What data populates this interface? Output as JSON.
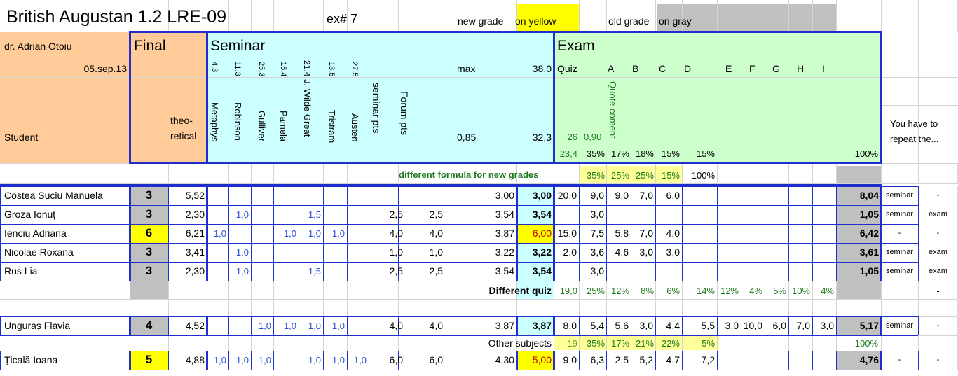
{
  "title": "British Augustan 1.2 LRE-09",
  "ex_label": "ex# 7",
  "legend": {
    "new_grade_a": "new grade",
    "new_grade_b": "on yellow",
    "old_grade_a": "old grade",
    "old_grade_b": "on gray"
  },
  "teacher": "dr. Adrian Otoiu",
  "date": "05.sep.13",
  "student_label": "Student",
  "final_label": "Final",
  "theoretical_a": "theo-",
  "theoretical_b": "retical",
  "seminar_label": "Seminar",
  "exam_label": "Exam",
  "seminar_nums": [
    "4.3",
    "11.3",
    "25.3",
    "15.4",
    "21.4",
    "13.5",
    "27.5"
  ],
  "seminar_cols": [
    "Metaphys",
    "Robinson",
    "Gulliver",
    "Pamela",
    "J. Wilde Great",
    "Tristram",
    "Austen",
    "seminar pts",
    "Forum pts"
  ],
  "max_label": "max",
  "max_value": "38,0",
  "ratio_value": "0,85",
  "ratio_total": "32,3",
  "exam_header": {
    "quiz": "Quiz",
    "letters": [
      "A",
      "B",
      "C",
      "D",
      "E",
      "F",
      "G",
      "H",
      "I"
    ],
    "quote": "Quote coment"
  },
  "exam_row1": {
    "v26": "26",
    "v090": "0,90"
  },
  "exam_row2": {
    "v234": "23,4",
    "p35": "35%",
    "p17": "17%",
    "p18": "18%",
    "p15a": "15%",
    "p15b": "15%",
    "p100": "100%"
  },
  "repeat_note": "You have to repeat the...",
  "diff_formula": {
    "label": "different formula for new grades",
    "p35": "35%",
    "p25a": "25%",
    "p25b": "25%",
    "p15": "15%",
    "p100": "100%"
  },
  "students": [
    {
      "name": "Costea Suciu Manuela",
      "final": "3",
      "final_color": "#c0c0c0",
      "theoretical": "5,52",
      "s1": "",
      "s2": "",
      "s3": "",
      "s4": "",
      "s5": "",
      "s6": "",
      "s7": "",
      "seminar_pts": "",
      "forum_pts": "",
      "total": "3,00",
      "sem_grade": "3,00",
      "sem_color": "#ccffff",
      "quiz": "20,0",
      "e1": "9,0",
      "e2": "9,0",
      "e3": "7,0",
      "e4": "6,0",
      "exam_final": "8,04",
      "rep_a": "seminar",
      "rep_b": "-"
    },
    {
      "name": "Groza Ionuț",
      "final": "3",
      "final_color": "#c0c0c0",
      "theoretical": "2,30",
      "s1": "",
      "s2": "1,0",
      "s3": "",
      "s4": "",
      "s5": "1,5",
      "s6": "",
      "s7": "",
      "seminar_pts": "2,5",
      "forum_pts": "2,5",
      "total": "3,54",
      "sem_grade": "3,54",
      "sem_color": "#ccffff",
      "quiz": "",
      "e1": "3,0",
      "e2": "",
      "e3": "",
      "e4": "",
      "exam_final": "1,05",
      "rep_a": "seminar",
      "rep_b": "exam"
    },
    {
      "name": "Ienciu Adriana",
      "final": "6",
      "final_color": "#ffff00",
      "theoretical": "6,21",
      "s1": "1,0",
      "s2": "",
      "s3": "",
      "s4": "1,0",
      "s5": "1,0",
      "s6": "1,0",
      "s7": "",
      "seminar_pts": "4,0",
      "forum_pts": "4,0",
      "total": "3,87",
      "sem_grade": "6,00",
      "sem_color": "#ffff00",
      "quiz": "15,0",
      "e1": "7,5",
      "e2": "5,8",
      "e3": "7,0",
      "e4": "4,0",
      "exam_final": "6,42",
      "rep_a": "-",
      "rep_b": "-"
    },
    {
      "name": "Nicolae Roxana",
      "final": "3",
      "final_color": "#c0c0c0",
      "theoretical": "3,41",
      "s1": "",
      "s2": "1,0",
      "s3": "",
      "s4": "",
      "s5": "",
      "s6": "",
      "s7": "",
      "seminar_pts": "1,0",
      "forum_pts": "1,0",
      "total": "3,22",
      "sem_grade": "3,22",
      "sem_color": "#ccffff",
      "quiz": "2,0",
      "e1": "3,6",
      "e2": "4,6",
      "e3": "3,0",
      "e4": "3,0",
      "exam_final": "3,61",
      "rep_a": "seminar",
      "rep_b": "exam"
    },
    {
      "name": "Rus Lia",
      "final": "3",
      "final_color": "#c0c0c0",
      "theoretical": "2,30",
      "s1": "",
      "s2": "1,0",
      "s3": "",
      "s4": "",
      "s5": "1,5",
      "s6": "",
      "s7": "",
      "seminar_pts": "2,5",
      "forum_pts": "2,5",
      "total": "3,54",
      "sem_grade": "3,54",
      "sem_color": "#ccffff",
      "quiz": "",
      "e1": "3,0",
      "e2": "",
      "e3": "",
      "e4": "",
      "exam_final": "1,05",
      "rep_a": "seminar",
      "rep_b": "exam"
    }
  ],
  "diff_quiz": {
    "label": "Different  quiz",
    "v190": "19,0",
    "p25": "25%",
    "p12a": "12%",
    "p8": "8%",
    "p6": "6%",
    "p14": "14%",
    "p12b": "12%",
    "p4a": "4%",
    "p5": "5%",
    "p10": "10%",
    "p4b": "4%",
    "dash": "-"
  },
  "flavia": {
    "name": "Unguraș Flavia",
    "final": "4",
    "theoretical": "4,52",
    "s3": "1,0",
    "s4": "1,0",
    "s5": "1,0",
    "s6": "1,0",
    "seminar_pts": "4,0",
    "forum_pts": "4,0",
    "total": "3,87",
    "sem_grade": "3,87",
    "quiz": "8,0",
    "e1": "5,4",
    "e2": "5,6",
    "e3": "3,0",
    "e4": "4,4",
    "e5": "5,5",
    "e6": "3,0",
    "e7": "10,0",
    "e8": "6,0",
    "e9": "7,0",
    "e10": "3,0",
    "exam_final": "5,17",
    "rep_a": "seminar",
    "rep_b": "-"
  },
  "other_subjects": {
    "label": "Other subjects",
    "v19": "19",
    "p35": "35%",
    "p17": "17%",
    "p21": "21%",
    "p22": "22%",
    "p5": "5%",
    "p100": "100%"
  },
  "ticala": {
    "name": "Țicală Ioana",
    "final": "5",
    "theoretical": "4,88",
    "s1": "1,0",
    "s2": "1,0",
    "s3": "1,0",
    "s5": "1,0",
    "s6": "1,0",
    "s7": "1,0",
    "seminar_pts": "6,0",
    "forum_pts": "6,0",
    "total": "4,30",
    "sem_grade": "5,00",
    "quiz": "9,0",
    "e1": "6,3",
    "e2": "2,5",
    "e3": "5,2",
    "e4": "4,7",
    "e5": "7,2",
    "exam_final": "4,76",
    "rep_a": "-",
    "rep_b": "-"
  },
  "colors": {
    "final_header": "#ffcc99",
    "seminar_header": "#ccffff",
    "exam_header": "#ccffcc",
    "gray": "#c0c0c0",
    "yellow": "#ffff00",
    "light_yellow": "#ffff99",
    "border_blue": "#1f2fc9",
    "value_blue": "#2a4fd0",
    "green_text": "#1e7a1e"
  }
}
